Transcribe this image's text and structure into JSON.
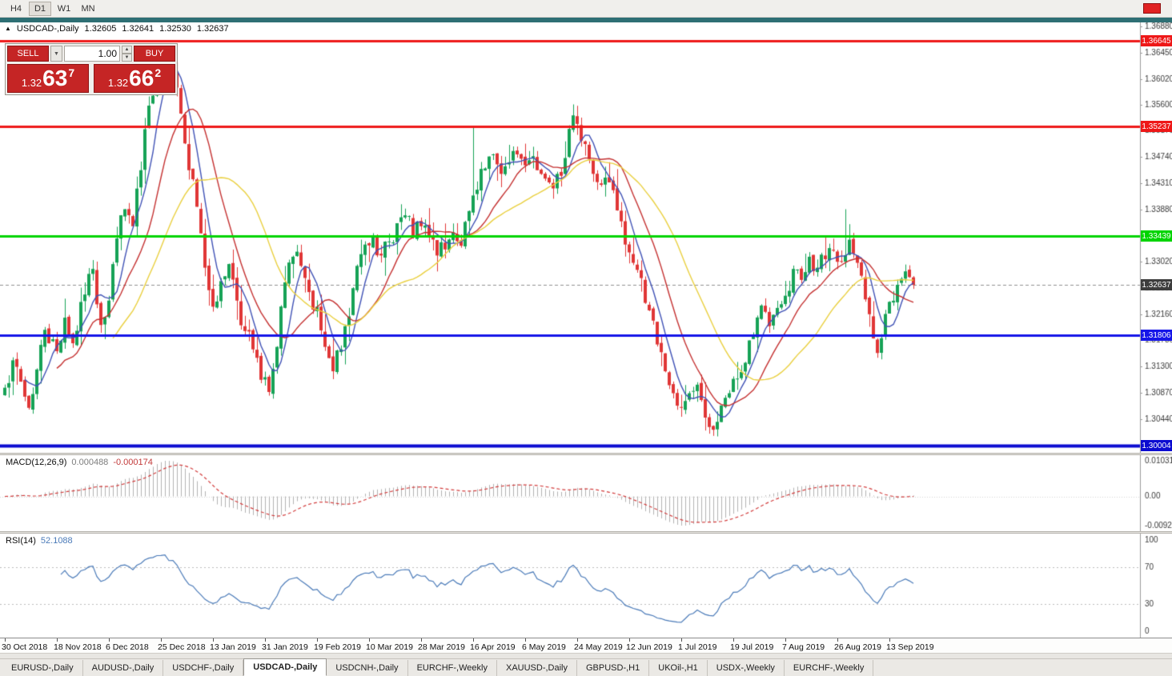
{
  "toolbar": {
    "timeframes": [
      {
        "label": "H4",
        "active": false
      },
      {
        "label": "D1",
        "active": true
      },
      {
        "label": "W1",
        "active": false
      },
      {
        "label": "MN",
        "active": false
      }
    ]
  },
  "window": {
    "title_symbol": "USDCAD-,Daily",
    "ohlc_open": "1.32605",
    "ohlc_high": "1.32641",
    "ohlc_low": "1.32530",
    "ohlc_close": "1.32637"
  },
  "trade_panel": {
    "sell_label": "SELL",
    "buy_label": "BUY",
    "volume": "1.00",
    "button_color": "#c52525",
    "sell_price_base": "1.32",
    "sell_price_big": "63",
    "sell_price_sup": "7",
    "buy_price_base": "1.32",
    "buy_price_big": "66",
    "buy_price_sup": "2"
  },
  "chart_data": {
    "type": "candlestick",
    "symbol": "USDCAD",
    "period": "Daily",
    "bars": 228,
    "candle_colors": {
      "up": "#16a256",
      "down": "#e03636"
    },
    "y_axis": {
      "top_price": 1.36946,
      "bottom_price": 1.29882,
      "ticks": [
        "1.36880",
        "1.36450",
        "1.36020",
        "1.35600",
        "1.35170",
        "1.34740",
        "1.34310",
        "1.33880",
        "1.33450",
        "1.33020",
        "1.32590",
        "1.32160",
        "1.31730",
        "1.31300",
        "1.30870",
        "1.30440",
        "1.30010"
      ]
    },
    "x_axis": {
      "labels": [
        "30 Oct 2018",
        "18 Nov 2018",
        "6 Dec 2018",
        "25 Dec 2018",
        "13 Jan 2019",
        "31 Jan 2019",
        "19 Feb 2019",
        "10 Mar 2019",
        "28 Mar 2019",
        "16 Apr 2019",
        "6 May 2019",
        "24 May 2019",
        "12 Jun 2019",
        "1 Jul 2019",
        "19 Jul 2019",
        "7 Aug 2019",
        "26 Aug 2019",
        "13 Sep 2019"
      ],
      "bar_indices": [
        0,
        13,
        26,
        39,
        52,
        65,
        78,
        91,
        104,
        117,
        130,
        143,
        156,
        169,
        182,
        195,
        208,
        221
      ]
    },
    "price_waypoints": [
      [
        0,
        1.3095
      ],
      [
        2,
        1.314
      ],
      [
        4,
        1.3105
      ],
      [
        6,
        1.3062
      ],
      [
        8,
        1.3125
      ],
      [
        10,
        1.319
      ],
      [
        13,
        1.3155
      ],
      [
        15,
        1.321
      ],
      [
        17,
        1.3168
      ],
      [
        20,
        1.3248
      ],
      [
        22,
        1.329
      ],
      [
        24,
        1.3198
      ],
      [
        26,
        1.3238
      ],
      [
        28,
        1.334
      ],
      [
        30,
        1.3388
      ],
      [
        32,
        1.336
      ],
      [
        34,
        1.3452
      ],
      [
        36,
        1.3558
      ],
      [
        38,
        1.3622
      ],
      [
        40,
        1.364
      ],
      [
        42,
        1.3612
      ],
      [
        44,
        1.3545
      ],
      [
        46,
        1.3452
      ],
      [
        48,
        1.3392
      ],
      [
        50,
        1.3292
      ],
      [
        52,
        1.3228
      ],
      [
        54,
        1.327
      ],
      [
        56,
        1.3298
      ],
      [
        58,
        1.3238
      ],
      [
        60,
        1.3188
      ],
      [
        62,
        1.3158
      ],
      [
        64,
        1.3108
      ],
      [
        66,
        1.3088
      ],
      [
        68,
        1.3162
      ],
      [
        70,
        1.3268
      ],
      [
        72,
        1.331
      ],
      [
        74,
        1.3295
      ],
      [
        76,
        1.3252
      ],
      [
        78,
        1.3228
      ],
      [
        80,
        1.3162
      ],
      [
        82,
        1.3122
      ],
      [
        84,
        1.3158
      ],
      [
        86,
        1.3212
      ],
      [
        88,
        1.3295
      ],
      [
        90,
        1.333
      ],
      [
        92,
        1.3345
      ],
      [
        94,
        1.3312
      ],
      [
        96,
        1.3335
      ],
      [
        98,
        1.3365
      ],
      [
        100,
        1.3378
      ],
      [
        102,
        1.3342
      ],
      [
        104,
        1.336
      ],
      [
        106,
        1.3342
      ],
      [
        108,
        1.3312
      ],
      [
        110,
        1.3322
      ],
      [
        112,
        1.335
      ],
      [
        114,
        1.3328
      ],
      [
        116,
        1.3385
      ],
      [
        118,
        1.342
      ],
      [
        120,
        1.3455
      ],
      [
        122,
        1.3478
      ],
      [
        124,
        1.3446
      ],
      [
        126,
        1.3465
      ],
      [
        128,
        1.3478
      ],
      [
        130,
        1.346
      ],
      [
        132,
        1.3475
      ],
      [
        134,
        1.3446
      ],
      [
        136,
        1.3432
      ],
      [
        138,
        1.3446
      ],
      [
        140,
        1.3472
      ],
      [
        142,
        1.3542
      ],
      [
        143,
        1.3528
      ],
      [
        145,
        1.3495
      ],
      [
        147,
        1.3446
      ],
      [
        149,
        1.3428
      ],
      [
        151,
        1.3432
      ],
      [
        153,
        1.3386
      ],
      [
        155,
        1.333
      ],
      [
        157,
        1.33
      ],
      [
        159,
        1.3275
      ],
      [
        161,
        1.3222
      ],
      [
        163,
        1.3166
      ],
      [
        165,
        1.3122
      ],
      [
        167,
        1.3086
      ],
      [
        169,
        1.3062
      ],
      [
        171,
        1.3086
      ],
      [
        173,
        1.31
      ],
      [
        175,
        1.3046
      ],
      [
        177,
        1.3026
      ],
      [
        179,
        1.3066
      ],
      [
        181,
        1.3086
      ],
      [
        183,
        1.311
      ],
      [
        185,
        1.3136
      ],
      [
        187,
        1.318
      ],
      [
        189,
        1.323
      ],
      [
        191,
        1.3196
      ],
      [
        193,
        1.3226
      ],
      [
        195,
        1.3246
      ],
      [
        197,
        1.329
      ],
      [
        199,
        1.3272
      ],
      [
        201,
        1.331
      ],
      [
        203,
        1.3292
      ],
      [
        205,
        1.3306
      ],
      [
        207,
        1.332
      ],
      [
        209,
        1.3302
      ],
      [
        211,
        1.3338
      ],
      [
        213,
        1.33
      ],
      [
        215,
        1.324
      ],
      [
        217,
        1.3176
      ],
      [
        218,
        1.3152
      ],
      [
        220,
        1.3216
      ],
      [
        221,
        1.3236
      ],
      [
        223,
        1.3264
      ],
      [
        225,
        1.3286
      ],
      [
        227,
        1.32637
      ]
    ],
    "spikes": [
      {
        "bar": 40,
        "high": 1.3658
      },
      {
        "bar": 117,
        "high": 1.3522
      },
      {
        "bar": 142,
        "high": 1.356
      },
      {
        "bar": 177,
        "low": 1.3016
      },
      {
        "bar": 210,
        "high": 1.3388
      }
    ],
    "levels": [
      {
        "price": 1.36645,
        "label": "1.36645",
        "color": "#ee1818",
        "width": 3
      },
      {
        "price": 1.35237,
        "label": "1.35237",
        "color": "#ee1818",
        "width": 3
      },
      {
        "price": 1.33439,
        "label": "1.33439",
        "color": "#00d400",
        "width": 3
      },
      {
        "price": 1.31806,
        "label": "1.31806",
        "color": "#1515e8",
        "width": 3
      },
      {
        "price": 1.30004,
        "label": "1.30004",
        "color": "#0b0bd0",
        "width": 4
      }
    ],
    "current_price": {
      "value": 1.32637,
      "label": "1.32637",
      "line_color": "#8f8f8f",
      "label_bg": "#3d3d3d"
    },
    "moving_averages": [
      {
        "name": "ma-fast",
        "period": 6,
        "color": "#3f51b5"
      },
      {
        "name": "ma-mid",
        "period": 14,
        "color": "#c43030"
      },
      {
        "name": "ma-slow",
        "period": 28,
        "color": "#e9cf3e"
      }
    ],
    "indicators": {
      "macd": {
        "label": "MACD(12,26,9)",
        "value_main": "0.000488",
        "value_signal": "-0.000174",
        "fast": 12,
        "slow": 26,
        "signal": 9,
        "axis_ticks": {
          "top": "0.010311",
          "zero": "0.00",
          "bottom": "-0.0092030"
        },
        "histogram_color": "#b2b2b2",
        "signal_color": "#d23c3c"
      },
      "rsi": {
        "label": "RSI(14)",
        "value": "52.1088",
        "period": 14,
        "axis_ticks": [
          "100",
          "70",
          "30",
          "0"
        ],
        "guide_levels": [
          70,
          30
        ],
        "line_color": "#4a7ab8"
      }
    }
  },
  "tabs": [
    {
      "label": "EURUSD-,Daily",
      "active": false
    },
    {
      "label": "AUDUSD-,Daily",
      "active": false
    },
    {
      "label": "USDCHF-,Daily",
      "active": false
    },
    {
      "label": "USDCAD-,Daily",
      "active": true
    },
    {
      "label": "USDCNH-,Daily",
      "active": false
    },
    {
      "label": "EURCHF-,Weekly",
      "active": false
    },
    {
      "label": "XAUUSD-,Daily",
      "active": false
    },
    {
      "label": "GBPUSD-,H1",
      "active": false
    },
    {
      "label": "UKOil-,H1",
      "active": false
    },
    {
      "label": "USDX-,Weekly",
      "active": false
    },
    {
      "label": "EURCHF-,Weekly",
      "active": false
    }
  ]
}
